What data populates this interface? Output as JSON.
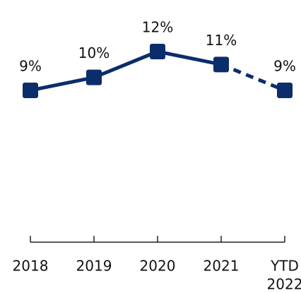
{
  "chart_data": {
    "type": "line",
    "categories": [
      "2018",
      "2019",
      "2020",
      "2021",
      [
        "YTD",
        "2022"
      ]
    ],
    "values": [
      9,
      10,
      12,
      11,
      9
    ],
    "value_labels": [
      "9%",
      "10%",
      "12%",
      "11%",
      "9%"
    ],
    "color": "#0c2d6b",
    "dash_last_segment": true
  }
}
